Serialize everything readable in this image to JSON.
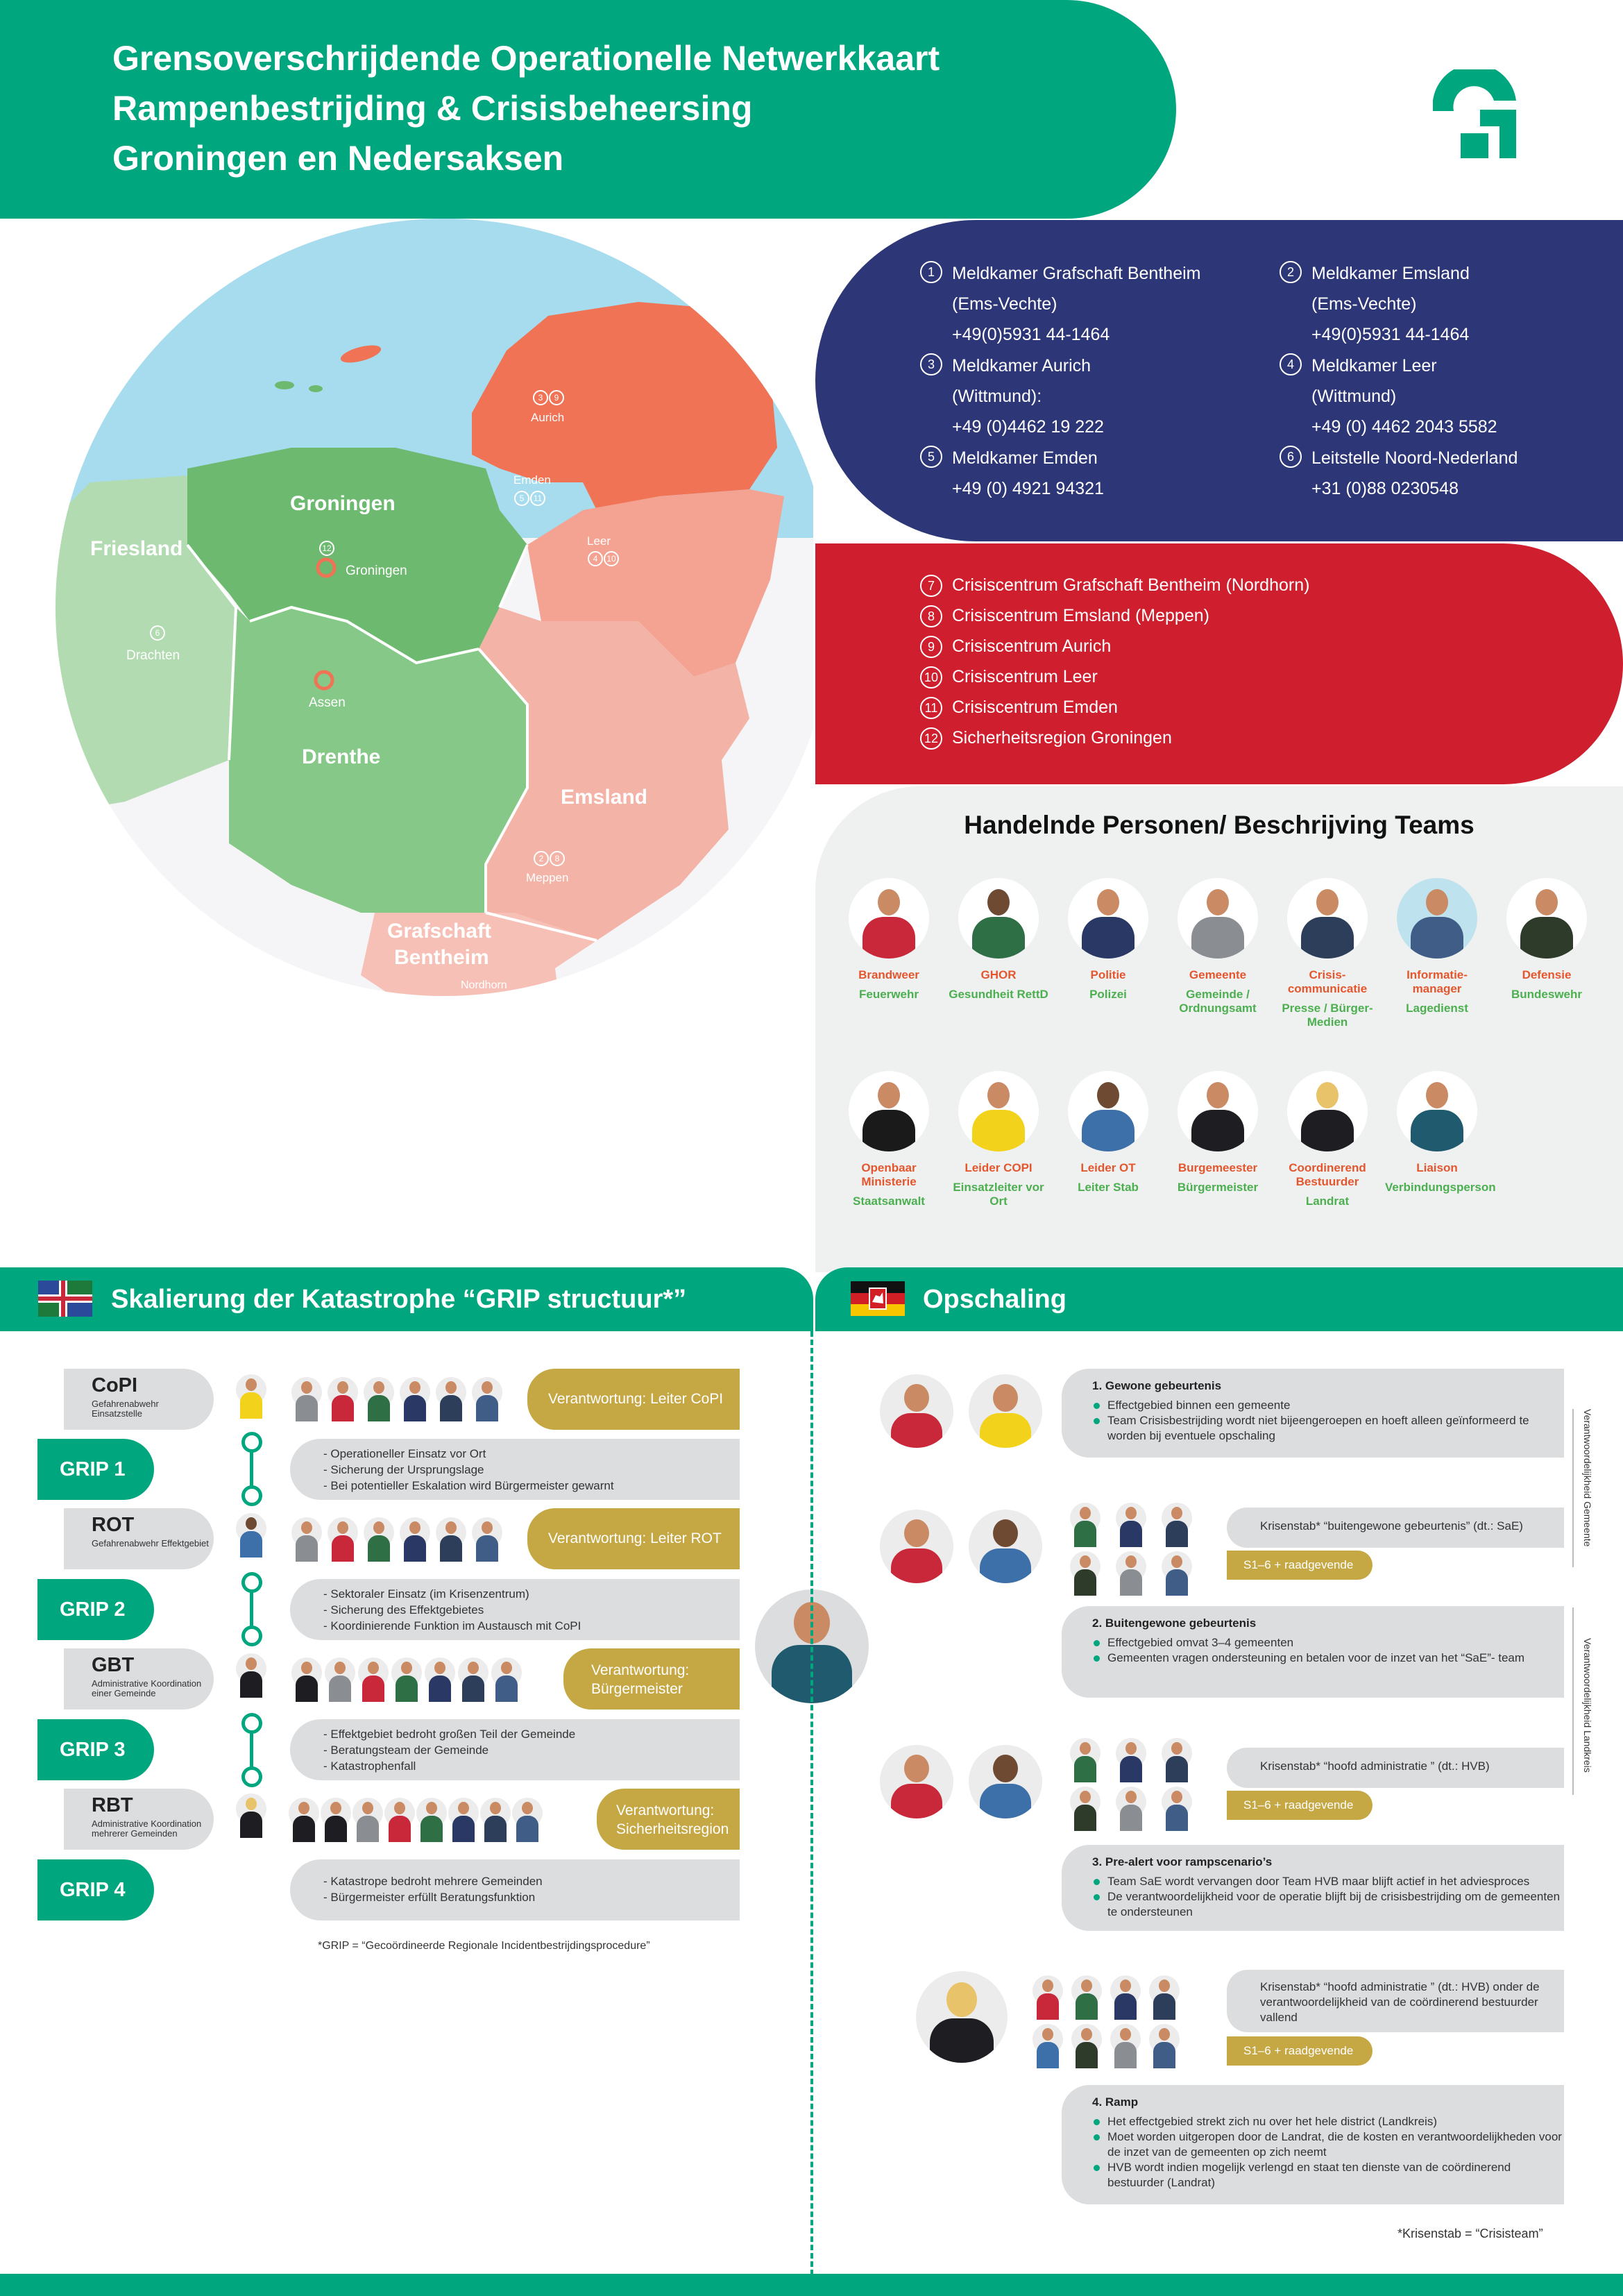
{
  "header": {
    "title_line1": "Grensoverschrijdende Operationelle Netwerkkaart",
    "title_line2": "Rampenbestrijding & Crisisbeheersing",
    "title_line3": "Groningen en Nedersaksen"
  },
  "map": {
    "regions": {
      "friesland": "Friesland",
      "groningen": "Groningen",
      "drenthe": "Drenthe",
      "emsland": "Emsland",
      "grafschaft_1": "Grafschaft",
      "grafschaft_2": "Bentheim"
    },
    "places": {
      "aurich": "Aurich",
      "emden": "Emden",
      "leer": "Leer",
      "groningen_city": "Groningen",
      "drachten": "Drachten",
      "assen": "Assen",
      "meppen": "Meppen",
      "nordhorn": "Nordhorn"
    },
    "markers": {
      "aurich": [
        "3",
        "9"
      ],
      "emden": [
        "5",
        "11"
      ],
      "leer": [
        "4",
        "10"
      ],
      "groningen": [
        "12"
      ],
      "drachten": [
        "6"
      ],
      "meppen": [
        "2",
        "8"
      ],
      "nordhorn": [
        "1",
        "7"
      ]
    }
  },
  "control_centers": [
    {
      "num": "1",
      "line1": "Meldkamer Grafschaft Bentheim",
      "line2": "(Ems-Vechte)",
      "line3": "+49(0)5931 44-1464"
    },
    {
      "num": "2",
      "line1": "Meldkamer Emsland",
      "line2": "(Ems-Vechte)",
      "line3": "+49(0)5931 44-1464"
    },
    {
      "num": "3",
      "line1": "Meldkamer Aurich",
      "line2": "(Wittmund):",
      "line3": "+49 (0)4462 19 222"
    },
    {
      "num": "4",
      "line1": "Meldkamer Leer",
      "line2": "(Wittmund)",
      "line3": "+49 (0) 4462 2043 5582"
    },
    {
      "num": "5",
      "line1": "Meldkamer Emden",
      "line2": "+49 (0) 4921 94321",
      "line3": ""
    },
    {
      "num": "6",
      "line1": "Leitstelle Noord-Nederland",
      "line2": "+31 (0)88 0230548",
      "line3": ""
    }
  ],
  "crisis_centers": [
    {
      "num": "7",
      "label": "Crisiscentrum Grafschaft Bentheim (Nordhorn)"
    },
    {
      "num": "8",
      "label": "Crisiscentrum Emsland (Meppen)"
    },
    {
      "num": "9",
      "label": "Crisiscentrum Aurich"
    },
    {
      "num": "10",
      "label": "Crisiscentrum Leer"
    },
    {
      "num": "11",
      "label": "Crisiscentrum Emden"
    },
    {
      "num": "12",
      "label": "Sicherheitsregion Groningen"
    }
  ],
  "personnel": {
    "title": "Handelnde Personen/ Beschrijving Teams",
    "row1": [
      {
        "nl": "Brandweer",
        "de": "Feuerwehr",
        "color": "#c8283a"
      },
      {
        "nl": "GHOR",
        "de": "Gesundheit RettD",
        "color": "#2f6f45"
      },
      {
        "nl": "Politie",
        "de": "Polizei",
        "color": "#2a3866"
      },
      {
        "nl": "Gemeente",
        "de": "Gemeinde / Ordnungsamt",
        "color": "#8a8d91"
      },
      {
        "nl": "Crisis-communicatie",
        "de": "Presse / Bürger-Medien",
        "color": "#2c3e5a"
      },
      {
        "nl": "Informatie-manager",
        "de": "Lagedienst",
        "color": "#3f5d86"
      },
      {
        "nl": "Defensie",
        "de": "Bundeswehr",
        "color": "#2f3b2a"
      }
    ],
    "row2": [
      {
        "nl": "Openbaar Ministerie",
        "de": "Staatsanwalt",
        "color": "#1a1a1a"
      },
      {
        "nl": "Leider COPI",
        "de": "Einsatzleiter vor Ort",
        "color": "#f2d21b"
      },
      {
        "nl": "Leider OT",
        "de": "Leiter Stab",
        "color": "#3d6fa8"
      },
      {
        "nl": "Burgemeester",
        "de": "Bürgermeister",
        "color": "#1d1d22"
      },
      {
        "nl": "Coordinerend Bestuurder",
        "de": "Landrat",
        "color": "#1d1d22"
      },
      {
        "nl": "Liaison",
        "de": "Verbindungsperson",
        "color": "#1f5a6e"
      }
    ]
  },
  "grip": {
    "section_title": "Skalierung der Katastrophe “GRIP structuur*”",
    "levels": [
      {
        "title": "CoPI",
        "sub": "Gefahrenabwehr Einsatzstelle",
        "resp": "Verantwortung: Leiter CoPI"
      },
      {
        "title": "ROT",
        "sub": "Gefahrenabwehr Effektgebiet",
        "resp": "Verantwortung: Leiter ROT"
      },
      {
        "title": "GBT",
        "sub": "Administrative Koordination einer Gemeinde",
        "resp": "Verantwortung: Bürgermeister"
      },
      {
        "title": "RBT",
        "sub": "Administrative Koordination mehrerer Gemeinden",
        "resp": "Verantwortung: Sicherheitsregion"
      }
    ],
    "steps": [
      {
        "label": "GRIP 1",
        "lines": [
          "- Operationeller Einsatz vor Ort",
          "- Sicherung der Ursprungslage",
          "- Bei potentieller Eskalation wird Bürgermeister gewarnt"
        ]
      },
      {
        "label": "GRIP 2",
        "lines": [
          "- Sektoraler Einsatz (im Krisenzentrum)",
          "- Sicherung des Effektgebietes",
          "- Koordinierende Funktion im Austausch mit CoPI"
        ]
      },
      {
        "label": "GRIP 3",
        "lines": [
          "- Effektgebiet bedroht großen Teil der Gemeinde",
          "- Beratungsteam der Gemeinde",
          "- Katastrophenfall"
        ]
      },
      {
        "label": "GRIP 4",
        "lines": [
          "- Katastrope bedroht mehrere Gemeinden",
          "- Bürgermeister erfüllt Beratungsfunktion"
        ]
      }
    ],
    "footnote": "*GRIP = “Gecoördineerde Regionale Incidentbestrijdingsprocedure”"
  },
  "ops": {
    "section_title": "Opschaling",
    "events": [
      {
        "title": "1. Gewone gebeurtenis",
        "bullets": [
          "Effectgebied binnen een gemeente",
          "Team Crisisbestrijding wordt niet bijeengeroepen en hoeft alleen geïnformeerd te worden bij eventuele opschaling"
        ]
      },
      {
        "title": "2. Buitengewone gebeurtenis",
        "bullets": [
          "Effectgebied omvat 3–4 gemeenten",
          "Gemeenten vragen ondersteuning en betalen voor de inzet van het “SaE”- team"
        ]
      },
      {
        "title": "3. Pre-alert voor rampscenario’s",
        "bullets": [
          "Team SaE wordt vervangen door Team HVB maar blijft actief in het adviesproces",
          "De verantwoordelijkheid voor de operatie blijft bij de crisisbestrijding om de gemeenten te ondersteunen"
        ]
      },
      {
        "title": "4. Ramp",
        "bullets": [
          "Het effectgebied strekt zich nu over het hele district (Landkreis)",
          "Moet worden uitgeropen door de Landrat, die de kosten en verantwoordelijkheden voor de inzet van de gemeenten op zich neemt",
          "HVB wordt indien mogelijk verlengd en staat ten dienste van de coördinerend bestuurder (Landrat)"
        ]
      }
    ],
    "krisenstab": [
      {
        "text": "Krisenstab* “buitengewone gebeurtenis” (dt.: SaE)",
        "tag": "S1–6 + raadgevende"
      },
      {
        "text": "Krisenstab* “hoofd administratie ” (dt.: HVB)",
        "tag": "S1–6 + raadgevende"
      },
      {
        "text": "Krisenstab* “hoofd administratie ” (dt.: HVB) onder de verantwoordelijkheid van de coördinerend bestuurder vallend",
        "tag": "S1–6 + raadgevende"
      }
    ],
    "side_label_1": "Verantwoordelijkheid Gemeente",
    "side_label_2": "Verantwoordelijkheid Landkreis",
    "footnote": "*Krisenstab = “Crisisteam”"
  },
  "colors": {
    "green": "#00a67e",
    "navy": "#2d3677",
    "red": "#cf1f2e",
    "gold": "#c5a744",
    "orange_map": "#f07355",
    "green_map": "#6db96f"
  }
}
